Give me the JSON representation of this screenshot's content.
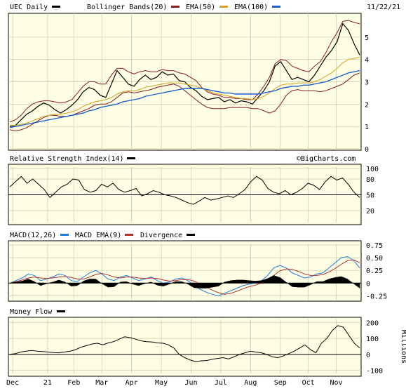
{
  "header": {
    "symbol_label": "UEC Daily",
    "bb_label": "Bollinger Bands(20)",
    "ema50_label": "EMA(50)",
    "ema100_label": "EMA(100)",
    "date_label": "11/22/21"
  },
  "watermark": "©BigCharts.com",
  "colors": {
    "panel_bg": "#ffffe6",
    "grid": "#c8c8a0",
    "price": "#000000",
    "bollinger": "#8b1a1a",
    "ema50": "#d4a020",
    "ema100": "#1f5fd0",
    "macd": "#1f7ae0",
    "macd_ema": "#b03030",
    "divergence": "#000000"
  },
  "chart_data": [
    {
      "type": "line",
      "panel": "price",
      "title": "UEC Daily",
      "ylim": [
        0,
        6
      ],
      "y_ticks": [
        0,
        1,
        2,
        3,
        4,
        5
      ],
      "x_labels": [
        "Dec",
        "21",
        "Feb",
        "Mar",
        "Apr",
        "May",
        "Jun",
        "Jul",
        "Aug",
        "Sep",
        "Oct",
        "Nov"
      ],
      "series": [
        {
          "name": "UEC Daily",
          "values": [
            1.0,
            1.05,
            1.3,
            1.55,
            1.7,
            1.9,
            2.05,
            1.95,
            1.75,
            1.6,
            1.75,
            1.95,
            2.2,
            2.55,
            2.75,
            2.65,
            2.4,
            2.3,
            2.9,
            3.5,
            3.2,
            2.9,
            2.8,
            3.1,
            3.3,
            3.1,
            3.2,
            3.45,
            3.3,
            3.35,
            3.05,
            3.0,
            2.75,
            2.6,
            2.35,
            2.2,
            2.25,
            2.3,
            2.1,
            2.2,
            2.05,
            2.15,
            2.1,
            2.0,
            2.3,
            2.6,
            3.0,
            3.7,
            3.9,
            3.5,
            3.1,
            3.2,
            3.1,
            3.0,
            3.3,
            3.7,
            4.1,
            4.4,
            4.8,
            5.6,
            5.3,
            4.7,
            4.2
          ]
        },
        {
          "name": "Bollinger Bands(20)",
          "values": [
            1.2,
            1.3,
            1.5,
            1.8,
            2.0,
            2.1,
            2.15,
            2.15,
            2.1,
            2.05,
            2.1,
            2.2,
            2.5,
            2.8,
            3.0,
            3.0,
            2.9,
            2.9,
            3.3,
            3.6,
            3.6,
            3.45,
            3.35,
            3.45,
            3.5,
            3.45,
            3.45,
            3.55,
            3.5,
            3.5,
            3.4,
            3.35,
            3.2,
            3.05,
            2.75,
            2.55,
            2.45,
            2.4,
            2.3,
            2.3,
            2.25,
            2.25,
            2.2,
            2.2,
            2.45,
            2.8,
            3.2,
            3.8,
            4.0,
            3.95,
            3.7,
            3.6,
            3.5,
            3.45,
            3.7,
            3.9,
            4.3,
            4.8,
            5.2,
            5.7,
            5.75,
            5.65,
            5.6
          ]
        },
        {
          "name": "Bollinger Bands(20)",
          "values": [
            0.85,
            0.8,
            0.85,
            0.95,
            1.1,
            1.25,
            1.4,
            1.5,
            1.5,
            1.45,
            1.45,
            1.5,
            1.6,
            1.7,
            1.8,
            1.95,
            2.0,
            2.0,
            2.1,
            2.3,
            2.5,
            2.55,
            2.5,
            2.55,
            2.6,
            2.65,
            2.75,
            2.8,
            2.85,
            2.9,
            2.8,
            2.6,
            2.4,
            2.2,
            2.0,
            1.85,
            1.8,
            1.8,
            1.8,
            1.85,
            1.85,
            1.85,
            1.85,
            1.8,
            1.8,
            1.7,
            1.6,
            1.7,
            2.0,
            2.4,
            2.6,
            2.65,
            2.6,
            2.6,
            2.6,
            2.55,
            2.6,
            2.7,
            2.8,
            2.9,
            3.1,
            3.3,
            3.4
          ]
        },
        {
          "name": "EMA(50)",
          "values": [
            1.05,
            1.05,
            1.1,
            1.15,
            1.25,
            1.35,
            1.45,
            1.5,
            1.55,
            1.55,
            1.6,
            1.65,
            1.75,
            1.9,
            2.0,
            2.1,
            2.15,
            2.2,
            2.3,
            2.45,
            2.55,
            2.6,
            2.6,
            2.65,
            2.75,
            2.8,
            2.85,
            2.9,
            2.95,
            2.95,
            2.95,
            2.9,
            2.85,
            2.8,
            2.7,
            2.6,
            2.5,
            2.45,
            2.4,
            2.35,
            2.3,
            2.25,
            2.25,
            2.2,
            2.25,
            2.35,
            2.5,
            2.7,
            2.85,
            2.9,
            2.9,
            2.95,
            2.95,
            2.95,
            3.0,
            3.1,
            3.25,
            3.4,
            3.6,
            3.85,
            4.0,
            4.05,
            4.1
          ]
        },
        {
          "name": "EMA(100)",
          "values": [
            0.95,
            1.0,
            1.05,
            1.1,
            1.15,
            1.2,
            1.25,
            1.3,
            1.35,
            1.4,
            1.45,
            1.5,
            1.55,
            1.6,
            1.7,
            1.75,
            1.85,
            1.9,
            1.95,
            2.0,
            2.1,
            2.15,
            2.2,
            2.25,
            2.35,
            2.4,
            2.45,
            2.5,
            2.55,
            2.6,
            2.65,
            2.7,
            2.7,
            2.7,
            2.7,
            2.65,
            2.6,
            2.55,
            2.5,
            2.5,
            2.45,
            2.45,
            2.45,
            2.45,
            2.45,
            2.5,
            2.55,
            2.6,
            2.7,
            2.75,
            2.8,
            2.8,
            2.85,
            2.85,
            2.9,
            2.95,
            3.0,
            3.1,
            3.2,
            3.3,
            3.4,
            3.45,
            3.5
          ]
        }
      ]
    },
    {
      "type": "line",
      "panel": "rsi",
      "title": "Relative Strength Index(14)",
      "ylim": [
        0,
        100
      ],
      "y_ticks": [
        100,
        80,
        50,
        20
      ],
      "reference": 50,
      "series": [
        {
          "name": "Relative Strength Index(14)",
          "values": [
            65,
            75,
            85,
            72,
            80,
            70,
            60,
            45,
            55,
            65,
            70,
            80,
            78,
            60,
            55,
            58,
            70,
            65,
            72,
            60,
            55,
            58,
            62,
            48,
            52,
            58,
            55,
            50,
            48,
            45,
            40,
            35,
            32,
            38,
            45,
            40,
            42,
            45,
            48,
            45,
            52,
            60,
            75,
            85,
            78,
            62,
            55,
            52,
            58,
            50,
            55,
            62,
            72,
            68,
            60,
            75,
            85,
            78,
            82,
            70,
            55,
            45
          ]
        }
      ]
    },
    {
      "type": "line",
      "panel": "macd",
      "title": "MACD(12,26)",
      "ylim": [
        -0.3,
        0.75
      ],
      "y_ticks": [
        0.75,
        0.5,
        0.25,
        0.0,
        -0.25
      ],
      "series": [
        {
          "name": "MACD(12,26)",
          "values": [
            0.0,
            0.05,
            0.1,
            0.18,
            0.15,
            0.05,
            0.08,
            0.12,
            0.18,
            0.15,
            0.05,
            0.03,
            0.12,
            0.2,
            0.25,
            0.18,
            0.08,
            0.05,
            0.12,
            0.15,
            0.1,
            0.05,
            0.08,
            0.12,
            0.05,
            0.0,
            0.02,
            0.08,
            0.1,
            0.05,
            -0.05,
            -0.12,
            -0.18,
            -0.22,
            -0.25,
            -0.2,
            -0.15,
            -0.1,
            -0.05,
            -0.02,
            0.0,
            0.05,
            0.15,
            0.3,
            0.35,
            0.3,
            0.2,
            0.15,
            0.1,
            0.12,
            0.18,
            0.2,
            0.3,
            0.4,
            0.5,
            0.52,
            0.45,
            0.3
          ]
        },
        {
          "name": "MACD EMA(9)",
          "values": [
            0.0,
            0.03,
            0.06,
            0.1,
            0.12,
            0.1,
            0.09,
            0.1,
            0.12,
            0.13,
            0.11,
            0.08,
            0.08,
            0.12,
            0.17,
            0.19,
            0.16,
            0.12,
            0.1,
            0.12,
            0.12,
            0.1,
            0.09,
            0.1,
            0.09,
            0.06,
            0.04,
            0.05,
            0.07,
            0.07,
            0.04,
            -0.02,
            -0.08,
            -0.14,
            -0.19,
            -0.22,
            -0.2,
            -0.16,
            -0.11,
            -0.07,
            -0.04,
            0.0,
            0.06,
            0.15,
            0.24,
            0.28,
            0.27,
            0.23,
            0.18,
            0.15,
            0.15,
            0.17,
            0.22,
            0.29,
            0.37,
            0.44,
            0.46,
            0.4
          ]
        },
        {
          "name": "Divergence",
          "values": [
            0.0,
            0.02,
            0.04,
            0.08,
            0.03,
            -0.05,
            -0.01,
            0.02,
            0.06,
            0.02,
            -0.06,
            -0.05,
            0.04,
            0.08,
            0.08,
            -0.01,
            -0.08,
            -0.07,
            0.02,
            0.03,
            -0.02,
            -0.05,
            -0.01,
            0.02,
            -0.04,
            -0.06,
            -0.02,
            0.03,
            0.03,
            -0.02,
            -0.09,
            -0.1,
            -0.1,
            -0.08,
            -0.06,
            0.02,
            0.05,
            0.06,
            0.06,
            0.05,
            0.04,
            0.05,
            0.09,
            0.15,
            0.11,
            0.02,
            -0.07,
            -0.08,
            -0.08,
            -0.03,
            0.03,
            0.03,
            0.08,
            0.11,
            0.13,
            0.08,
            -0.01,
            -0.1
          ]
        }
      ]
    },
    {
      "type": "line",
      "panel": "money_flow",
      "title": "Money Flow",
      "ylim": [
        -110,
        210
      ],
      "y_ticks": [
        200,
        100,
        0,
        -100
      ],
      "ylabel": "Millions",
      "reference": 0,
      "series": [
        {
          "name": "Money Flow",
          "values": [
            0,
            5,
            15,
            20,
            25,
            20,
            18,
            15,
            12,
            10,
            15,
            20,
            30,
            45,
            55,
            65,
            70,
            60,
            72,
            80,
            95,
            110,
            105,
            95,
            85,
            80,
            78,
            72,
            70,
            60,
            40,
            0,
            -20,
            -35,
            -45,
            -40,
            -38,
            -30,
            -25,
            -20,
            -28,
            -15,
            0,
            10,
            20,
            15,
            10,
            0,
            -15,
            -20,
            -10,
            5,
            20,
            40,
            60,
            30,
            10,
            70,
            100,
            150,
            180,
            170,
            120,
            70,
            40
          ]
        }
      ]
    }
  ]
}
